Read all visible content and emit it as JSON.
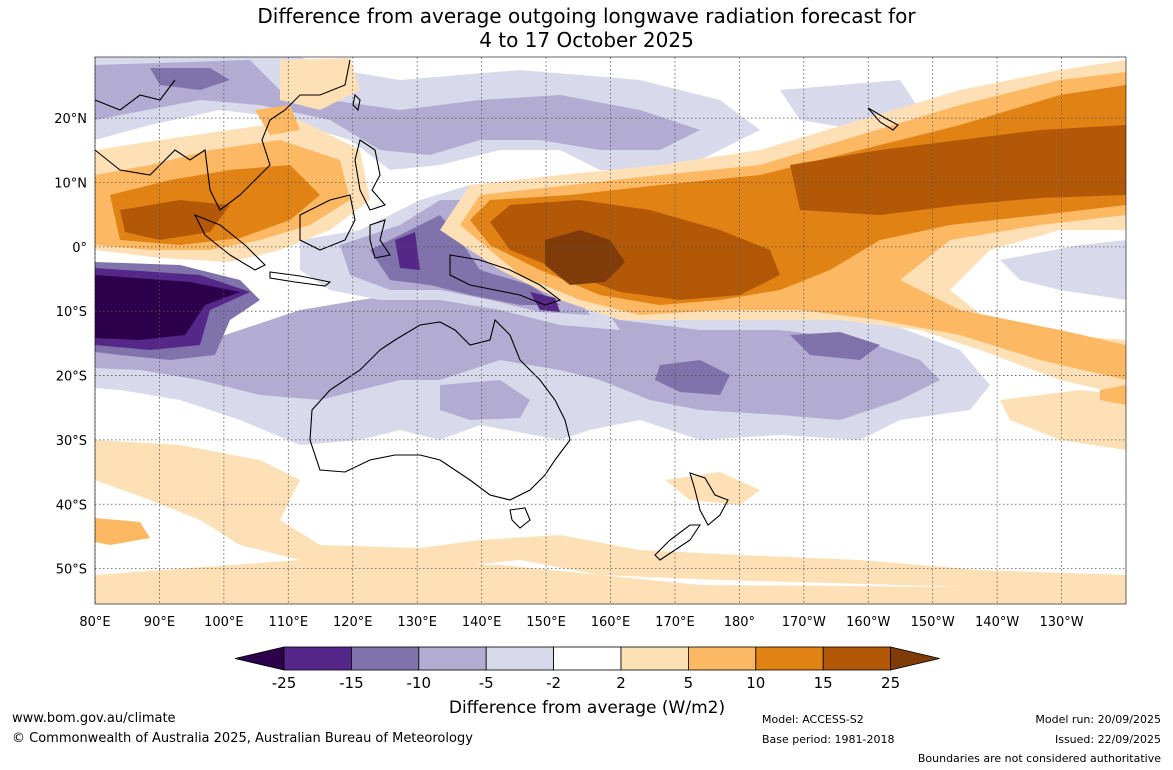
{
  "title": {
    "line1": "Difference from average outgoing longwave radiation forecast for",
    "line2": "4 to 17 October 2025"
  },
  "map": {
    "lat_labels": [
      "20°N",
      "10°N",
      "0°",
      "10°S",
      "20°S",
      "30°S",
      "40°S",
      "50°S"
    ],
    "lon_labels": [
      "80°E",
      "90°E",
      "100°E",
      "110°E",
      "120°E",
      "130°E",
      "140°E",
      "150°E",
      "160°E",
      "170°E",
      "180°",
      "170°W",
      "160°W",
      "150°W",
      "140°W",
      "130°W"
    ],
    "lat_values": [
      20,
      10,
      0,
      -10,
      -20,
      -30,
      -40,
      -50
    ],
    "lon_values": [
      80,
      90,
      100,
      110,
      120,
      130,
      140,
      150,
      160,
      170,
      180,
      190,
      200,
      210,
      220,
      230
    ],
    "extent": {
      "lon_min": 80,
      "lon_max": 240,
      "lat_min": -55.5,
      "lat_max": 29.5
    }
  },
  "legend": {
    "tick_labels": [
      "-25",
      "-15",
      "-10",
      "-5",
      "-2",
      "2",
      "5",
      "10",
      "15",
      "25"
    ],
    "colors": [
      "#2d004b",
      "#542788",
      "#8073ac",
      "#b2abd2",
      "#d8daeb",
      "#ffffff",
      "#fee0b6",
      "#fdb863",
      "#e08214",
      "#b35806",
      "#7f3b08"
    ],
    "label": "Difference from average (W/m2)"
  },
  "footer": {
    "url": "www.bom.gov.au/climate",
    "copyright": "© Commonwealth of Australia 2025, Australian Bureau of Meteorology",
    "model": "Model: ACCESS-S2",
    "base_period": "Base period: 1981-2018",
    "model_run": "Model run: 20/09/2025",
    "issued": "Issued: 22/09/2025",
    "disclaimer": "Boundaries are not considered authoritative"
  }
}
